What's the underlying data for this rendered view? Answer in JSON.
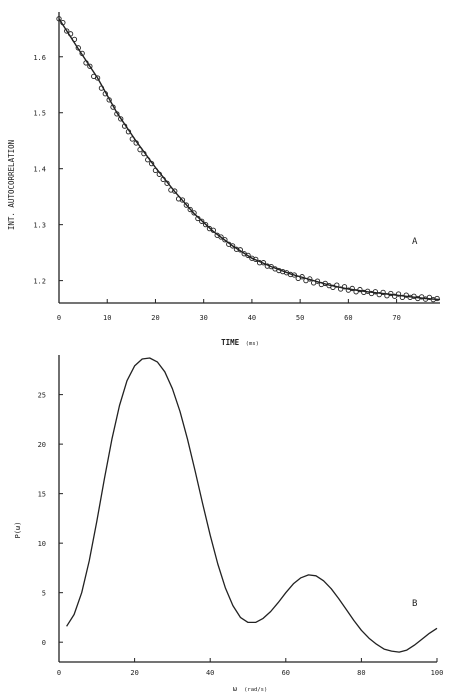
{
  "chart_data": [
    {
      "type": "scatter",
      "panel_label": "A",
      "xlabel": "TIME",
      "xlabel_unit": "(ms)",
      "ylabel": "INT. AUTOCORRELATION",
      "xlim": [
        0,
        79
      ],
      "ylim": [
        1.16,
        1.68
      ],
      "xticks": [
        0,
        10,
        20,
        30,
        40,
        50,
        60,
        70
      ],
      "yticks": [
        1.2,
        1.3,
        1.4,
        1.5,
        1.6
      ],
      "ytick_labels": [
        "1.2",
        "1.3",
        "1.4",
        "1.5",
        "1.6"
      ],
      "grid": false,
      "series": [
        {
          "kind": "points",
          "marker": "open-circle",
          "x": [
            0,
            0.8,
            1.6,
            2.4,
            3.2,
            4,
            4.8,
            5.6,
            6.4,
            7.2,
            8,
            8.8,
            9.6,
            10.4,
            11.2,
            12,
            12.8,
            13.6,
            14.4,
            15.2,
            16,
            16.8,
            17.6,
            18.4,
            19.2,
            20,
            20.8,
            21.6,
            22.4,
            23.2,
            24,
            24.8,
            25.6,
            26.4,
            27.2,
            28,
            28.8,
            29.6,
            30.4,
            31.2,
            32,
            32.8,
            33.6,
            34.4,
            35.2,
            36,
            36.8,
            37.6,
            38.4,
            39.2,
            40,
            40.8,
            41.6,
            42.4,
            43.2,
            44,
            44.8,
            45.6,
            46.4,
            47.2,
            48,
            48.8,
            49.6,
            50.4,
            51.2,
            52,
            52.8,
            53.6,
            54.4,
            55.2,
            56,
            56.8,
            57.6,
            58.4,
            59.2,
            60,
            60.8,
            61.6,
            62.4,
            63.2,
            64,
            64.8,
            65.6,
            66.4,
            67.2,
            68,
            68.8,
            69.6,
            70.4,
            71.2,
            72,
            72.8,
            73.6,
            74.4,
            75.2,
            76,
            76.8,
            77.6,
            78.4
          ],
          "y": [
            1.668,
            1.661,
            1.646,
            1.641,
            1.631,
            1.616,
            1.606,
            1.589,
            1.583,
            1.565,
            1.562,
            1.544,
            1.534,
            1.523,
            1.51,
            1.498,
            1.489,
            1.476,
            1.466,
            1.453,
            1.446,
            1.434,
            1.427,
            1.416,
            1.409,
            1.397,
            1.39,
            1.381,
            1.374,
            1.362,
            1.36,
            1.346,
            1.344,
            1.335,
            1.327,
            1.321,
            1.311,
            1.306,
            1.3,
            1.293,
            1.29,
            1.281,
            1.278,
            1.273,
            1.265,
            1.262,
            1.256,
            1.255,
            1.248,
            1.245,
            1.24,
            1.238,
            1.232,
            1.232,
            1.226,
            1.225,
            1.221,
            1.218,
            1.216,
            1.214,
            1.211,
            1.21,
            1.204,
            1.207,
            1.2,
            1.203,
            1.196,
            1.199,
            1.193,
            1.195,
            1.191,
            1.188,
            1.192,
            1.185,
            1.189,
            1.183,
            1.186,
            1.18,
            1.184,
            1.179,
            1.181,
            1.177,
            1.18,
            1.175,
            1.179,
            1.173,
            1.177,
            1.172,
            1.176,
            1.17,
            1.174,
            1.17,
            1.172,
            1.168,
            1.171,
            1.167,
            1.17,
            1.166,
            1.168
          ]
        },
        {
          "kind": "fit-line",
          "x": [
            0,
            4,
            8,
            12,
            16,
            20,
            24,
            28,
            32,
            36,
            40,
            44,
            48,
            52,
            56,
            60,
            64,
            68,
            72,
            76,
            79
          ],
          "y": [
            1.668,
            1.614,
            1.562,
            1.5,
            1.449,
            1.402,
            1.359,
            1.32,
            1.288,
            1.262,
            1.24,
            1.225,
            1.212,
            1.202,
            1.192,
            1.185,
            1.18,
            1.176,
            1.172,
            1.168,
            1.166
          ]
        }
      ]
    },
    {
      "type": "line",
      "panel_label": "B",
      "xlabel": "ω",
      "xlabel_unit": "(rad/s)",
      "ylabel": "P(ω)",
      "xlim": [
        0,
        100
      ],
      "ylim": [
        -2,
        29
      ],
      "xticks": [
        0,
        20,
        40,
        60,
        80,
        100
      ],
      "yticks": [
        0,
        5,
        10,
        15,
        20,
        25
      ],
      "ytick_labels": [
        "0",
        "5",
        "10",
        "15",
        "20",
        "25"
      ],
      "grid": false,
      "series": [
        {
          "x": [
            2,
            4,
            6,
            8,
            10,
            12,
            14,
            16,
            18,
            20,
            22,
            24,
            26,
            28,
            30,
            32,
            34,
            36,
            38,
            40,
            42,
            44,
            46,
            48,
            50,
            52,
            54,
            56,
            58,
            60,
            62,
            64,
            66,
            68,
            70,
            72,
            74,
            76,
            78,
            80,
            82,
            84,
            86,
            88,
            90,
            92,
            94,
            96,
            98,
            100
          ],
          "y": [
            1.6,
            2.8,
            5.0,
            8.2,
            12.2,
            16.5,
            20.5,
            23.9,
            26.4,
            27.9,
            28.6,
            28.7,
            28.3,
            27.3,
            25.6,
            23.3,
            20.5,
            17.3,
            14.0,
            10.8,
            7.9,
            5.5,
            3.7,
            2.5,
            2.0,
            2.0,
            2.4,
            3.1,
            4.0,
            5.0,
            5.9,
            6.5,
            6.8,
            6.7,
            6.2,
            5.4,
            4.4,
            3.3,
            2.2,
            1.2,
            0.4,
            -0.2,
            -0.7,
            -0.9,
            -1.0,
            -0.8,
            -0.3,
            0.3,
            0.9,
            1.4
          ]
        }
      ]
    }
  ]
}
